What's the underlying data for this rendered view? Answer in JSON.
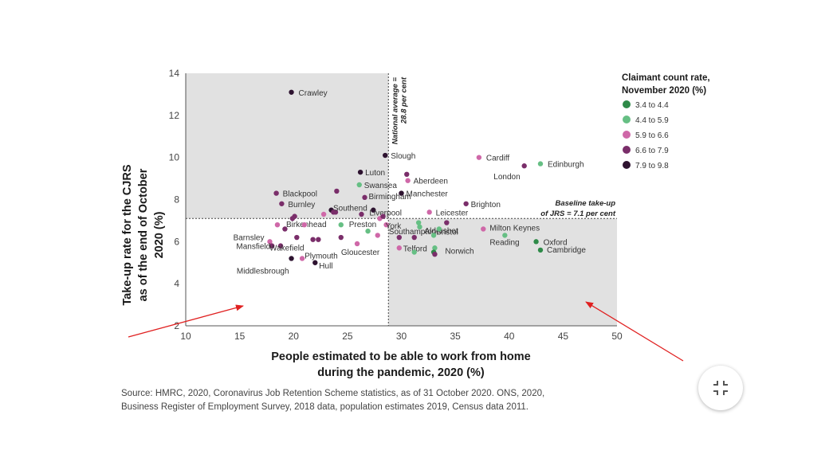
{
  "chart_data": {
    "type": "scatter",
    "xlabel": [
      "People estimated to be able to work from home",
      "during the pandemic,  2020 (%)"
    ],
    "ylabel": [
      "Take-up rate for the CJRS",
      "as of the end of October",
      "2020  (%)"
    ],
    "xlim": [
      10,
      50
    ],
    "ylim": [
      2,
      14
    ],
    "xticks": [
      10,
      15,
      20,
      25,
      30,
      35,
      40,
      45,
      50
    ],
    "yticks": [
      2,
      4,
      6,
      8,
      10,
      12,
      14
    ],
    "national_average_x": 28.8,
    "national_average_label": [
      "National average =",
      "28.8 per cent"
    ],
    "baseline_y": 7.1,
    "baseline_label": [
      "Baseline take-up",
      "of JRS = 7.1 per cent"
    ],
    "shaded_quadrants": [
      "top-left",
      "bottom-right"
    ],
    "legend": {
      "title": [
        "Claimant count rate,",
        "November 2020 (%)"
      ],
      "position": "top-right",
      "entries": [
        {
          "label": "3.4 to 4.4",
          "color": "#2e8a48"
        },
        {
          "label": "4.4 to 5.9",
          "color": "#66bf84"
        },
        {
          "label": "5.9 to 6.6",
          "color": "#cf68a8"
        },
        {
          "label": "6.6 to 7.9",
          "color": "#7a2e6a"
        },
        {
          "label": "7.9 to 9.8",
          "color": "#2e1330"
        }
      ]
    },
    "points": [
      {
        "name": "Crawley",
        "x": 19.8,
        "y": 13.1,
        "c": 4
      },
      {
        "name": "Slough",
        "x": 28.5,
        "y": 10.1,
        "c": 4
      },
      {
        "name": "Luton",
        "x": 26.2,
        "y": 9.3,
        "c": 4
      },
      {
        "name": "Swansea",
        "x": 26.1,
        "y": 8.7,
        "c": 1
      },
      {
        "name": "Blackpool",
        "x": 18.4,
        "y": 8.3,
        "c": 3
      },
      {
        "name": "Birmingham",
        "x": 26.6,
        "y": 8.1,
        "c": 3
      },
      {
        "name": "Burnley",
        "x": 18.9,
        "y": 7.8,
        "c": 3
      },
      {
        "name": "Southend",
        "x": 23.9,
        "y": 7.4,
        "c": 3
      },
      {
        "name": "Liverpool",
        "x": 27.4,
        "y": 7.5,
        "c": 4
      },
      {
        "name": "Cardiff",
        "x": 37.2,
        "y": 10.0,
        "c": 2
      },
      {
        "name": "Edinburgh",
        "x": 42.9,
        "y": 9.7,
        "c": 1
      },
      {
        "name": "London",
        "x": 41.4,
        "y": 9.6,
        "c": 3
      },
      {
        "name": "Aberdeen",
        "x": 30.6,
        "y": 8.9,
        "c": 2
      },
      {
        "name": "Manchester",
        "x": 30.0,
        "y": 8.3,
        "c": 4
      },
      {
        "name": "Brighton",
        "x": 36.0,
        "y": 7.8,
        "c": 3
      },
      {
        "name": "Leicester",
        "x": 32.6,
        "y": 7.4,
        "c": 2
      },
      {
        "name": "Birkenhead",
        "x": 18.5,
        "y": 6.8,
        "c": 2
      },
      {
        "name": "Preston",
        "x": 24.4,
        "y": 6.8,
        "c": 1
      },
      {
        "name": "York",
        "x": 28.6,
        "y": 6.8,
        "c": 2
      },
      {
        "name": "Aldershot",
        "x": 31.7,
        "y": 6.7,
        "c": 1
      },
      {
        "name": "Milton Keynes",
        "x": 37.6,
        "y": 6.6,
        "c": 2
      },
      {
        "name": "Southampton",
        "x": 29.8,
        "y": 6.2,
        "c": 3
      },
      {
        "name": "Bristol",
        "x": 33.0,
        "y": 6.3,
        "c": 1
      },
      {
        "name": "Reading",
        "x": 39.6,
        "y": 6.3,
        "c": 1
      },
      {
        "name": "Oxford",
        "x": 42.5,
        "y": 6.0,
        "c": 0
      },
      {
        "name": "Barnsley",
        "x": 17.8,
        "y": 6.0,
        "c": 2
      },
      {
        "name": "Mansfield",
        "x": 18.0,
        "y": 5.8,
        "c": 3
      },
      {
        "name": "Wakefield",
        "x": 18.8,
        "y": 5.8,
        "c": 3
      },
      {
        "name": "Gloucester",
        "x": 25.9,
        "y": 5.9,
        "c": 2
      },
      {
        "name": "Telford",
        "x": 29.8,
        "y": 5.7,
        "c": 2
      },
      {
        "name": "Norwich",
        "x": 33.1,
        "y": 5.7,
        "c": 1
      },
      {
        "name": "Cambridge",
        "x": 42.9,
        "y": 5.6,
        "c": 0
      },
      {
        "name": "Plymouth",
        "x": 20.8,
        "y": 5.2,
        "c": 2
      },
      {
        "name": "Middlesbrough",
        "x": 19.8,
        "y": 5.2,
        "c": 4
      },
      {
        "name": "Hull",
        "x": 22.0,
        "y": 5.0,
        "c": 4
      },
      {
        "name": "",
        "x": 20.1,
        "y": 7.2,
        "c": 3
      },
      {
        "name": "",
        "x": 19.9,
        "y": 7.1,
        "c": 3
      },
      {
        "name": "",
        "x": 19.2,
        "y": 6.6,
        "c": 3
      },
      {
        "name": "",
        "x": 20.3,
        "y": 6.2,
        "c": 3
      },
      {
        "name": "",
        "x": 21.0,
        "y": 6.8,
        "c": 2
      },
      {
        "name": "",
        "x": 21.8,
        "y": 6.1,
        "c": 3
      },
      {
        "name": "",
        "x": 22.3,
        "y": 6.1,
        "c": 3
      },
      {
        "name": "",
        "x": 22.8,
        "y": 7.3,
        "c": 2
      },
      {
        "name": "",
        "x": 23.5,
        "y": 7.5,
        "c": 4
      },
      {
        "name": "",
        "x": 23.7,
        "y": 7.4,
        "c": 3
      },
      {
        "name": "",
        "x": 24.0,
        "y": 8.4,
        "c": 3
      },
      {
        "name": "",
        "x": 24.4,
        "y": 6.2,
        "c": 3
      },
      {
        "name": "",
        "x": 26.3,
        "y": 7.3,
        "c": 3
      },
      {
        "name": "",
        "x": 26.9,
        "y": 6.5,
        "c": 1
      },
      {
        "name": "",
        "x": 27.8,
        "y": 6.3,
        "c": 2
      },
      {
        "name": "",
        "x": 28.0,
        "y": 7.1,
        "c": 2
      },
      {
        "name": "",
        "x": 28.3,
        "y": 7.2,
        "c": 3
      },
      {
        "name": "",
        "x": 30.5,
        "y": 9.2,
        "c": 3
      },
      {
        "name": "",
        "x": 31.2,
        "y": 6.2,
        "c": 3
      },
      {
        "name": "",
        "x": 31.6,
        "y": 6.9,
        "c": 1
      },
      {
        "name": "",
        "x": 33.5,
        "y": 6.6,
        "c": 1
      },
      {
        "name": "",
        "x": 34.2,
        "y": 6.9,
        "c": 3
      },
      {
        "name": "",
        "x": 31.2,
        "y": 5.5,
        "c": 1
      },
      {
        "name": "",
        "x": 33.0,
        "y": 5.5,
        "c": 0
      },
      {
        "name": "",
        "x": 33.1,
        "y": 5.4,
        "c": 3
      }
    ]
  },
  "source": [
    "Source: HMRC, 2020, Coronavirus Job Retention Scheme statistics, as of 31 October 2020. ONS, 2020,",
    "Business Register of Employment Survey, 2018 data, population estimates 2019, Census data 2011."
  ],
  "annotations": {
    "arrow_color": "#e02020",
    "arrows": [
      "points-to-top-left-region",
      "points-to-bottom-right-region"
    ]
  },
  "fab": {
    "icon": "collapse-icon"
  }
}
